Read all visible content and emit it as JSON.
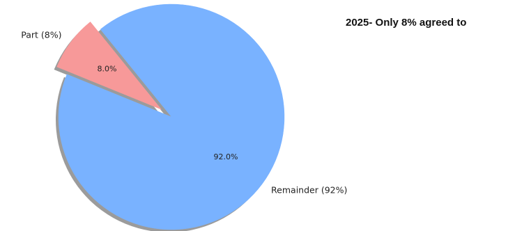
{
  "caption": "2025-  Only 8% agreed to",
  "chart_data": {
    "type": "pie",
    "labels": [
      "Part (8%)",
      "Remainder (92%)"
    ],
    "values": [
      8.0,
      92.0
    ],
    "pct_labels": [
      "8.0%",
      "92.0%"
    ],
    "colors": [
      "#f79999",
      "#79b2ff"
    ],
    "exploded": [
      true,
      false
    ],
    "shadow": true
  }
}
